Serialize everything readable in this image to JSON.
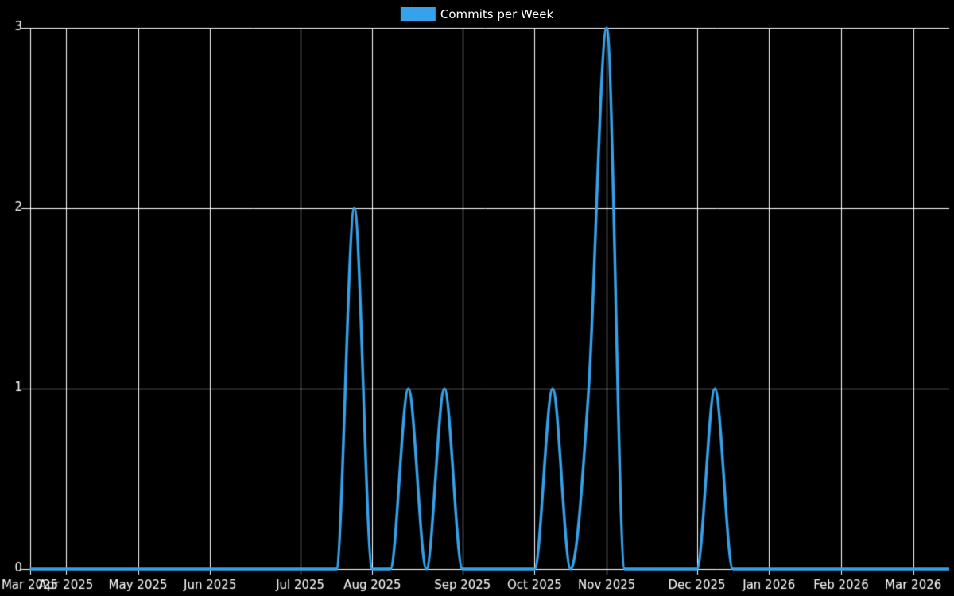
{
  "legend": {
    "label": "Commits per Week",
    "swatch_color": "#36A2EB",
    "position": "top"
  },
  "chart_data": {
    "type": "line",
    "title": "",
    "xlabel": "",
    "ylabel": "",
    "x_unit": "week-index",
    "series": [
      {
        "name": "Commits per Week",
        "color": "#36A2EB",
        "line_width": 3.5,
        "interpolation": "monotone",
        "fill": false,
        "values": [
          0,
          0,
          0,
          0,
          0,
          0,
          0,
          0,
          0,
          0,
          0,
          0,
          0,
          0,
          0,
          0,
          0,
          0,
          2,
          0,
          0,
          1,
          0,
          1,
          0,
          0,
          0,
          0,
          0,
          1,
          0,
          1,
          3,
          0,
          0,
          0,
          0,
          0,
          1,
          0,
          0,
          0,
          0,
          0,
          0,
          0,
          0,
          0,
          0,
          0,
          0,
          0
        ]
      }
    ],
    "x_ticks": [
      {
        "label": "Mar 2025",
        "week": 0
      },
      {
        "label": "Apr 2025",
        "week": 2
      },
      {
        "label": "May 2025",
        "week": 6
      },
      {
        "label": "Jun 2025",
        "week": 10
      },
      {
        "label": "Jul 2025",
        "week": 15
      },
      {
        "label": "Aug 2025",
        "week": 19
      },
      {
        "label": "Sep 2025",
        "week": 24
      },
      {
        "label": "Oct 2025",
        "week": 28
      },
      {
        "label": "Nov 2025",
        "week": 32
      },
      {
        "label": "Dec 2025",
        "week": 37
      },
      {
        "label": "Jan 2026",
        "week": 41
      },
      {
        "label": "Feb 2026",
        "week": 45
      },
      {
        "label": "Mar 2026",
        "week": 49
      }
    ],
    "y_ticks": [
      0,
      1,
      2,
      3
    ],
    "ylim": [
      0,
      3
    ],
    "grid": true,
    "legend_position": "top",
    "colors": {
      "background": "#000000",
      "grid": "#ffffff",
      "axis_text": "#ffffff",
      "line": "#36A2EB"
    }
  }
}
